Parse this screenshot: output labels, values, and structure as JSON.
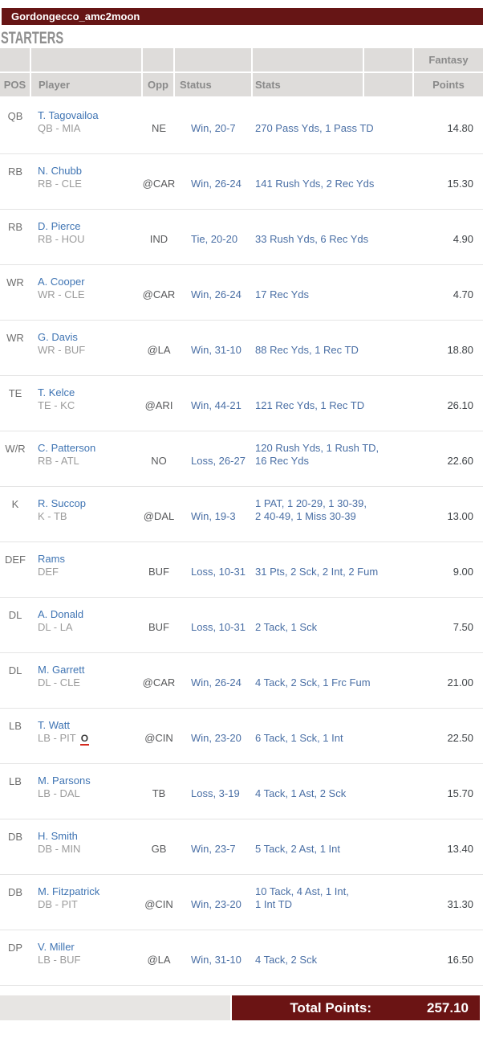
{
  "titlebar": {
    "team_name": "Gordongecco_amc2moon"
  },
  "section_title": "STARTERS",
  "table": {
    "columns": {
      "pos": "POS",
      "player": "Player",
      "opp": "Opp",
      "status": "Status",
      "stats": "Stats",
      "fantasy": "Fantasy",
      "points": "Points"
    },
    "rows": [
      {
        "pos": "QB",
        "name": "T. Tagovailoa",
        "detail": "QB - MIA",
        "injury": "",
        "opp": "NE",
        "status": "Win, 20-7",
        "stats": "270 Pass Yds, 1 Pass TD",
        "points": "14.80"
      },
      {
        "pos": "RB",
        "name": "N. Chubb",
        "detail": "RB - CLE",
        "injury": "",
        "opp": "@CAR",
        "status": "Win, 26-24",
        "stats": "141 Rush Yds, 2 Rec Yds",
        "points": "15.30"
      },
      {
        "pos": "RB",
        "name": "D. Pierce",
        "detail": "RB - HOU",
        "injury": "",
        "opp": "IND",
        "status": "Tie, 20-20",
        "stats": "33 Rush Yds, 6 Rec Yds",
        "points": "4.90"
      },
      {
        "pos": "WR",
        "name": "A. Cooper",
        "detail": "WR - CLE",
        "injury": "",
        "opp": "@CAR",
        "status": "Win, 26-24",
        "stats": "17 Rec Yds",
        "points": "4.70"
      },
      {
        "pos": "WR",
        "name": "G. Davis",
        "detail": "WR - BUF",
        "injury": "",
        "opp": "@LA",
        "status": "Win, 31-10",
        "stats": "88 Rec Yds, 1 Rec TD",
        "points": "18.80"
      },
      {
        "pos": "TE",
        "name": "T. Kelce",
        "detail": "TE - KC",
        "injury": "",
        "opp": "@ARI",
        "status": "Win, 44-21",
        "stats": "121 Rec Yds, 1 Rec TD",
        "points": "26.10"
      },
      {
        "pos": "W/R",
        "name": "C. Patterson",
        "detail": "RB - ATL",
        "injury": "",
        "opp": "NO",
        "status": "Loss, 26-27",
        "stats": "120 Rush Yds, 1 Rush TD,\n16 Rec Yds",
        "points": "22.60"
      },
      {
        "pos": "K",
        "name": "R. Succop",
        "detail": "K - TB",
        "injury": "",
        "opp": "@DAL",
        "status": "Win, 19-3",
        "stats": "1 PAT, 1 20-29, 1 30-39,\n2 40-49, 1 Miss 30-39",
        "points": "13.00"
      },
      {
        "pos": "DEF",
        "name": "Rams",
        "detail": "DEF",
        "injury": "",
        "opp": "BUF",
        "status": "Loss, 10-31",
        "stats": "31 Pts, 2 Sck, 2 Int, 2 Fum",
        "points": "9.00"
      },
      {
        "pos": "DL",
        "name": "A. Donald",
        "detail": "DL - LA",
        "injury": "",
        "opp": "BUF",
        "status": "Loss, 10-31",
        "stats": "2 Tack, 1 Sck",
        "points": "7.50"
      },
      {
        "pos": "DL",
        "name": "M. Garrett",
        "detail": "DL - CLE",
        "injury": "",
        "opp": "@CAR",
        "status": "Win, 26-24",
        "stats": "4 Tack, 2 Sck, 1 Frc Fum",
        "points": "21.00"
      },
      {
        "pos": "LB",
        "name": "T. Watt",
        "detail": "LB - PIT",
        "injury": "O",
        "opp": "@CIN",
        "status": "Win, 23-20",
        "stats": "6 Tack, 1 Sck, 1 Int",
        "points": "22.50"
      },
      {
        "pos": "LB",
        "name": "M. Parsons",
        "detail": "LB - DAL",
        "injury": "",
        "opp": "TB",
        "status": "Loss, 3-19",
        "stats": "4 Tack, 1 Ast, 2 Sck",
        "points": "15.70"
      },
      {
        "pos": "DB",
        "name": "H. Smith",
        "detail": "DB - MIN",
        "injury": "",
        "opp": "GB",
        "status": "Win, 23-7",
        "stats": "5 Tack, 2 Ast, 1 Int",
        "points": "13.40"
      },
      {
        "pos": "DB",
        "name": "M. Fitzpatrick",
        "detail": "DB - PIT",
        "injury": "",
        "opp": "@CIN",
        "status": "Win, 23-20",
        "stats": "10 Tack, 4 Ast, 1 Int,\n1 Int TD",
        "points": "31.30"
      },
      {
        "pos": "DP",
        "name": "V. Miller",
        "detail": "LB - BUF",
        "injury": "",
        "opp": "@LA",
        "status": "Win, 31-10",
        "stats": "4 Tack, 2 Sck",
        "points": "16.50"
      }
    ]
  },
  "footer": {
    "total_label": "Total Points:",
    "total_value": "257.10"
  },
  "colors": {
    "maroon": "#661515",
    "footer_maroon": "#6b1414",
    "header_bg": "#dedcda",
    "header_text": "#8a8a8a",
    "player_link_blue": "#3f74b3",
    "stat_blue": "#4a6fa5",
    "sub_gray": "#9b9b9b",
    "opp_gray": "#58595b",
    "points_dark": "#3e4246",
    "injury_red": "#d42a1e",
    "footer_gray": "#e7e5e3"
  }
}
